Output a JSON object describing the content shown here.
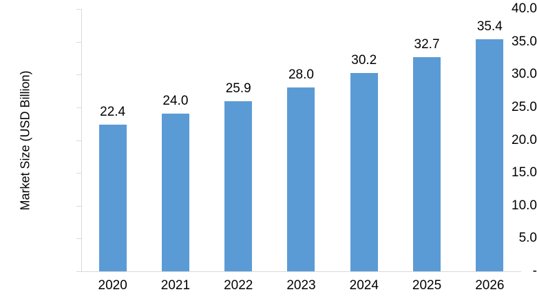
{
  "chart_data": {
    "type": "bar",
    "title": "",
    "xlabel": "",
    "ylabel": "Market Size (USD Billion)",
    "categories": [
      "2020",
      "2021",
      "2022",
      "2023",
      "2024",
      "2025",
      "2026"
    ],
    "values": [
      22.4,
      24.0,
      25.9,
      28.0,
      30.2,
      32.7,
      35.4
    ],
    "value_labels": [
      "22.4",
      "24.0",
      "25.9",
      "28.0",
      "30.2",
      "32.7",
      "35.4"
    ],
    "ylim": [
      0,
      40
    ],
    "y_ticks": [
      {
        "value": 40,
        "label": "40.0"
      },
      {
        "value": 35,
        "label": "35.0"
      },
      {
        "value": 30,
        "label": "30.0"
      },
      {
        "value": 25,
        "label": "25.0"
      },
      {
        "value": 20,
        "label": "20.0"
      },
      {
        "value": 15,
        "label": "15.0"
      },
      {
        "value": 10,
        "label": "10.0"
      },
      {
        "value": 5,
        "label": "5.0"
      },
      {
        "value": 0,
        "label": "-"
      }
    ],
    "grid": false,
    "legend": false,
    "colors": {
      "bar": "#5b9bd5",
      "axis_line": "#d9d9d9",
      "text": "#000000",
      "background": "#ffffff"
    }
  }
}
